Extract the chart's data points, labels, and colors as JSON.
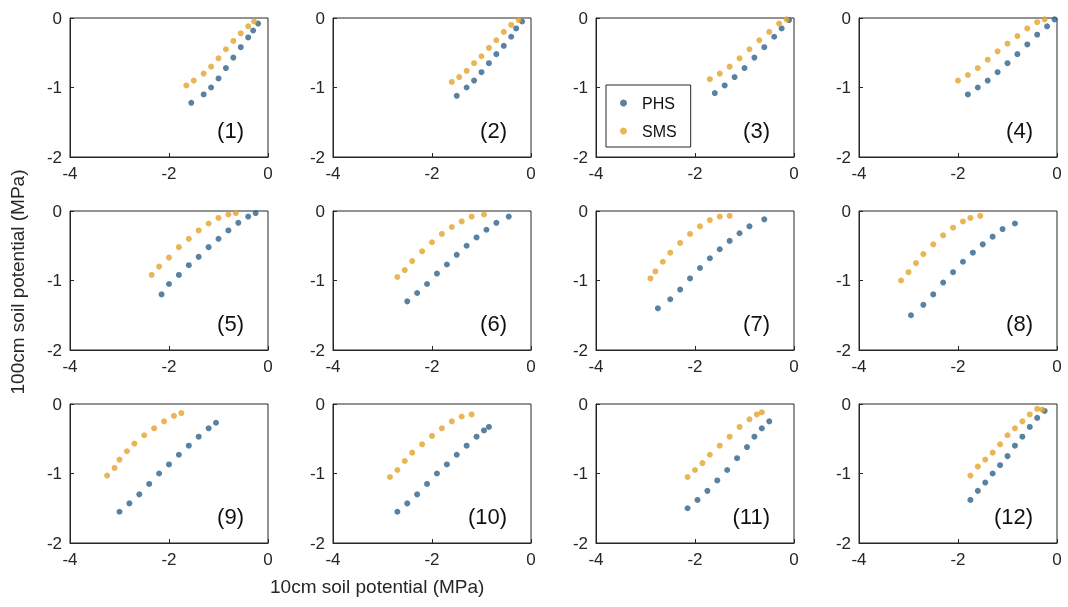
{
  "chart_data": [
    {
      "type": "scatter",
      "annotations": [
        "(1)"
      ],
      "xlim": [
        -4,
        0
      ],
      "xticks": [
        -4,
        -2,
        0
      ],
      "ylim": [
        -2,
        0
      ],
      "yticks": [
        -2,
        -1,
        0
      ],
      "grid": false,
      "legend": false,
      "marker": "circle",
      "series": [
        {
          "color": "#2f6189",
          "x": [
            -1.55,
            -1.3,
            -1.15,
            -1.0,
            -0.85,
            -0.7,
            -0.55,
            -0.4,
            -0.3,
            -0.2
          ],
          "values": [
            -1.22,
            -1.1,
            -1.0,
            -0.87,
            -0.72,
            -0.57,
            -0.42,
            -0.28,
            -0.18,
            -0.08
          ]
        },
        {
          "color": "#e3a32b",
          "x": [
            -1.65,
            -1.5,
            -1.3,
            -1.15,
            -1.0,
            -0.85,
            -0.7,
            -0.55,
            -0.4,
            -0.28
          ],
          "values": [
            -0.97,
            -0.9,
            -0.8,
            -0.7,
            -0.58,
            -0.45,
            -0.33,
            -0.22,
            -0.12,
            -0.05
          ]
        }
      ]
    },
    {
      "type": "scatter",
      "annotations": [
        "(2)"
      ],
      "xlim": [
        -4,
        0
      ],
      "xticks": [
        -4,
        -2,
        0
      ],
      "ylim": [
        -2,
        0
      ],
      "yticks": [
        -2,
        -1,
        0
      ],
      "grid": false,
      "legend": false,
      "marker": "circle",
      "series": [
        {
          "color": "#2f6189",
          "x": [
            -1.5,
            -1.3,
            -1.15,
            -1.0,
            -0.85,
            -0.7,
            -0.55,
            -0.4,
            -0.3,
            -0.18
          ],
          "values": [
            -1.12,
            -1.0,
            -0.9,
            -0.78,
            -0.65,
            -0.52,
            -0.4,
            -0.27,
            -0.15,
            -0.05
          ]
        },
        {
          "color": "#e3a32b",
          "x": [
            -1.6,
            -1.45,
            -1.3,
            -1.15,
            -1.0,
            -0.85,
            -0.7,
            -0.55,
            -0.4,
            -0.25
          ],
          "values": [
            -0.92,
            -0.85,
            -0.76,
            -0.65,
            -0.55,
            -0.43,
            -0.32,
            -0.2,
            -0.1,
            -0.03
          ]
        }
      ]
    },
    {
      "type": "scatter",
      "annotations": [
        "(3)"
      ],
      "xlim": [
        -4,
        0
      ],
      "xticks": [
        -4,
        -2,
        0
      ],
      "ylim": [
        -2,
        0
      ],
      "yticks": [
        -2,
        -1,
        0
      ],
      "grid": false,
      "legend": "bottom left",
      "marker": "circle",
      "series": [
        {
          "name": "PHS",
          "color": "#2f6189",
          "x": [
            -1.6,
            -1.4,
            -1.2,
            -1.0,
            -0.8,
            -0.6,
            -0.4,
            -0.25,
            -0.1
          ],
          "values": [
            -1.08,
            -0.97,
            -0.85,
            -0.72,
            -0.57,
            -0.42,
            -0.27,
            -0.15,
            -0.03
          ]
        },
        {
          "name": "SMS",
          "color": "#e3a32b",
          "x": [
            -1.7,
            -1.5,
            -1.3,
            -1.1,
            -0.9,
            -0.7,
            -0.5,
            -0.3,
            -0.15
          ],
          "values": [
            -0.88,
            -0.8,
            -0.7,
            -0.58,
            -0.45,
            -0.32,
            -0.2,
            -0.08,
            -0.02
          ]
        }
      ]
    },
    {
      "type": "scatter",
      "annotations": [
        "(4)"
      ],
      "xlim": [
        -4,
        0
      ],
      "xticks": [
        -4,
        -2,
        0
      ],
      "ylim": [
        -2,
        0
      ],
      "yticks": [
        -2,
        -1,
        0
      ],
      "grid": false,
      "legend": false,
      "marker": "circle",
      "series": [
        {
          "color": "#2f6189",
          "x": [
            -1.8,
            -1.6,
            -1.4,
            -1.2,
            -1.0,
            -0.8,
            -0.6,
            -0.4,
            -0.2,
            -0.05
          ],
          "values": [
            -1.1,
            -1.0,
            -0.9,
            -0.78,
            -0.65,
            -0.52,
            -0.38,
            -0.24,
            -0.12,
            -0.02
          ]
        },
        {
          "color": "#e3a32b",
          "x": [
            -2.0,
            -1.8,
            -1.6,
            -1.4,
            -1.2,
            -1.0,
            -0.8,
            -0.6,
            -0.4,
            -0.25
          ],
          "values": [
            -0.9,
            -0.82,
            -0.72,
            -0.6,
            -0.48,
            -0.37,
            -0.26,
            -0.15,
            -0.06,
            -0.02
          ]
        }
      ]
    },
    {
      "type": "scatter",
      "annotations": [
        "(5)"
      ],
      "ylabel": "100cm soil potential (MPa)",
      "xlim": [
        -4,
        0
      ],
      "xticks": [
        -4,
        -2,
        0
      ],
      "ylim": [
        -2,
        0
      ],
      "yticks": [
        -2,
        -1,
        0
      ],
      "grid": false,
      "legend": false,
      "marker": "circle",
      "series": [
        {
          "color": "#2f6189",
          "x": [
            -2.15,
            -2.0,
            -1.8,
            -1.6,
            -1.4,
            -1.2,
            -1.0,
            -0.8,
            -0.6,
            -0.4,
            -0.25
          ],
          "values": [
            -1.2,
            -1.05,
            -0.92,
            -0.78,
            -0.66,
            -0.52,
            -0.4,
            -0.28,
            -0.17,
            -0.08,
            -0.03
          ]
        },
        {
          "color": "#e3a32b",
          "x": [
            -2.35,
            -2.2,
            -2.0,
            -1.8,
            -1.6,
            -1.4,
            -1.2,
            -1.0,
            -0.8,
            -0.65
          ],
          "values": [
            -0.92,
            -0.8,
            -0.67,
            -0.52,
            -0.4,
            -0.28,
            -0.18,
            -0.1,
            -0.05,
            -0.03
          ]
        }
      ]
    },
    {
      "type": "scatter",
      "annotations": [
        "(6)"
      ],
      "xlim": [
        -4,
        0
      ],
      "xticks": [
        -4,
        -2,
        0
      ],
      "ylim": [
        -2,
        0
      ],
      "yticks": [
        -2,
        -1,
        0
      ],
      "grid": false,
      "legend": false,
      "marker": "circle",
      "series": [
        {
          "color": "#2f6189",
          "x": [
            -2.5,
            -2.3,
            -2.1,
            -1.9,
            -1.7,
            -1.5,
            -1.3,
            -1.1,
            -0.9,
            -0.7,
            -0.45
          ],
          "values": [
            -1.3,
            -1.18,
            -1.05,
            -0.9,
            -0.77,
            -0.63,
            -0.5,
            -0.38,
            -0.27,
            -0.17,
            -0.08
          ]
        },
        {
          "color": "#e3a32b",
          "x": [
            -2.7,
            -2.55,
            -2.4,
            -2.2,
            -2.0,
            -1.8,
            -1.6,
            -1.4,
            -1.2,
            -0.95
          ],
          "values": [
            -0.95,
            -0.85,
            -0.72,
            -0.58,
            -0.45,
            -0.33,
            -0.23,
            -0.15,
            -0.08,
            -0.05
          ]
        }
      ]
    },
    {
      "type": "scatter",
      "annotations": [
        "(7)"
      ],
      "xlim": [
        -4,
        0
      ],
      "xticks": [
        -4,
        -2,
        0
      ],
      "ylim": [
        -2,
        0
      ],
      "yticks": [
        -2,
        -1,
        0
      ],
      "grid": false,
      "legend": false,
      "marker": "circle",
      "series": [
        {
          "color": "#2f6189",
          "x": [
            -2.75,
            -2.5,
            -2.3,
            -2.1,
            -1.9,
            -1.7,
            -1.5,
            -1.3,
            -1.1,
            -0.9,
            -0.6
          ],
          "values": [
            -1.4,
            -1.27,
            -1.13,
            -0.97,
            -0.82,
            -0.68,
            -0.55,
            -0.43,
            -0.32,
            -0.22,
            -0.12
          ]
        },
        {
          "color": "#e3a32b",
          "x": [
            -2.9,
            -2.8,
            -2.65,
            -2.5,
            -2.3,
            -2.1,
            -1.9,
            -1.7,
            -1.5,
            -1.3
          ],
          "values": [
            -0.97,
            -0.87,
            -0.73,
            -0.6,
            -0.46,
            -0.33,
            -0.22,
            -0.13,
            -0.08,
            -0.07
          ]
        }
      ]
    },
    {
      "type": "scatter",
      "annotations": [
        "(8)"
      ],
      "xlim": [
        -4,
        0
      ],
      "xticks": [
        -4,
        -2,
        0
      ],
      "ylim": [
        -2,
        0
      ],
      "yticks": [
        -2,
        -1,
        0
      ],
      "grid": false,
      "legend": false,
      "marker": "circle",
      "series": [
        {
          "color": "#2f6189",
          "x": [
            -2.95,
            -2.7,
            -2.5,
            -2.3,
            -2.1,
            -1.9,
            -1.7,
            -1.5,
            -1.3,
            -1.1,
            -0.85
          ],
          "values": [
            -1.5,
            -1.35,
            -1.2,
            -1.03,
            -0.88,
            -0.73,
            -0.6,
            -0.48,
            -0.37,
            -0.26,
            -0.18
          ]
        },
        {
          "color": "#e3a32b",
          "x": [
            -3.15,
            -3.0,
            -2.85,
            -2.7,
            -2.5,
            -2.3,
            -2.1,
            -1.9,
            -1.75,
            -1.55
          ],
          "values": [
            -1.0,
            -0.88,
            -0.75,
            -0.62,
            -0.48,
            -0.35,
            -0.24,
            -0.15,
            -0.1,
            -0.07
          ]
        }
      ]
    },
    {
      "type": "scatter",
      "annotations": [
        "(9)"
      ],
      "xlabel": "10cm soil potential (MPa)",
      "xlim": [
        -4,
        0
      ],
      "xticks": [
        -4,
        -2,
        0
      ],
      "ylim": [
        -2,
        0
      ],
      "yticks": [
        -2,
        -1,
        0
      ],
      "grid": false,
      "legend": false,
      "marker": "circle",
      "series": [
        {
          "color": "#2f6189",
          "x": [
            -3.0,
            -2.8,
            -2.6,
            -2.4,
            -2.2,
            -2.0,
            -1.8,
            -1.6,
            -1.4,
            -1.2,
            -1.05
          ],
          "values": [
            -1.55,
            -1.43,
            -1.3,
            -1.15,
            -1.0,
            -0.87,
            -0.73,
            -0.6,
            -0.47,
            -0.35,
            -0.27
          ]
        },
        {
          "color": "#e3a32b",
          "x": [
            -3.25,
            -3.1,
            -3.0,
            -2.85,
            -2.7,
            -2.5,
            -2.3,
            -2.1,
            -1.9,
            -1.75
          ],
          "values": [
            -1.03,
            -0.92,
            -0.8,
            -0.68,
            -0.57,
            -0.45,
            -0.35,
            -0.25,
            -0.17,
            -0.13
          ]
        }
      ]
    },
    {
      "type": "scatter",
      "annotations": [
        "(10)"
      ],
      "xlim": [
        -4,
        0
      ],
      "xticks": [
        -4,
        -2,
        0
      ],
      "ylim": [
        -2,
        0
      ],
      "yticks": [
        -2,
        -1,
        0
      ],
      "grid": false,
      "legend": false,
      "marker": "circle",
      "series": [
        {
          "color": "#2f6189",
          "x": [
            -2.7,
            -2.5,
            -2.3,
            -2.1,
            -1.9,
            -1.7,
            -1.5,
            -1.3,
            -1.1,
            -0.95,
            -0.85
          ],
          "values": [
            -1.55,
            -1.43,
            -1.3,
            -1.15,
            -1.0,
            -0.87,
            -0.73,
            -0.6,
            -0.47,
            -0.38,
            -0.33
          ]
        },
        {
          "color": "#e3a32b",
          "x": [
            -2.85,
            -2.7,
            -2.55,
            -2.4,
            -2.2,
            -2.0,
            -1.8,
            -1.6,
            -1.4,
            -1.2
          ],
          "values": [
            -1.05,
            -0.95,
            -0.82,
            -0.7,
            -0.58,
            -0.46,
            -0.35,
            -0.25,
            -0.18,
            -0.15
          ]
        }
      ]
    },
    {
      "type": "scatter",
      "annotations": [
        "(11)"
      ],
      "xlim": [
        -4,
        0
      ],
      "xticks": [
        -4,
        -2,
        0
      ],
      "ylim": [
        -2,
        0
      ],
      "yticks": [
        -2,
        -1,
        0
      ],
      "grid": false,
      "legend": false,
      "marker": "circle",
      "series": [
        {
          "color": "#2f6189",
          "x": [
            -2.15,
            -1.95,
            -1.75,
            -1.55,
            -1.35,
            -1.15,
            -0.95,
            -0.8,
            -0.65,
            -0.5
          ],
          "values": [
            -1.5,
            -1.38,
            -1.25,
            -1.1,
            -0.95,
            -0.78,
            -0.62,
            -0.47,
            -0.35,
            -0.25
          ]
        },
        {
          "color": "#e3a32b",
          "x": [
            -2.15,
            -2.0,
            -1.85,
            -1.7,
            -1.5,
            -1.3,
            -1.1,
            -0.9,
            -0.75,
            -0.65
          ],
          "values": [
            -1.05,
            -0.95,
            -0.85,
            -0.73,
            -0.6,
            -0.47,
            -0.33,
            -0.22,
            -0.15,
            -0.12
          ]
        }
      ]
    },
    {
      "type": "scatter",
      "annotations": [
        "(12)"
      ],
      "xlim": [
        -4,
        0
      ],
      "xticks": [
        -4,
        -2,
        0
      ],
      "ylim": [
        -2,
        0
      ],
      "yticks": [
        -2,
        -1,
        0
      ],
      "grid": false,
      "legend": false,
      "marker": "circle",
      "series": [
        {
          "color": "#2f6189",
          "x": [
            -1.75,
            -1.6,
            -1.45,
            -1.3,
            -1.15,
            -1.0,
            -0.85,
            -0.7,
            -0.55,
            -0.4,
            -0.25
          ],
          "values": [
            -1.38,
            -1.25,
            -1.13,
            -1.0,
            -0.88,
            -0.75,
            -0.6,
            -0.47,
            -0.33,
            -0.2,
            -0.1
          ]
        },
        {
          "color": "#e3a32b",
          "x": [
            -1.75,
            -1.6,
            -1.45,
            -1.3,
            -1.15,
            -1.0,
            -0.85,
            -0.7,
            -0.55,
            -0.4,
            -0.3
          ],
          "values": [
            -1.03,
            -0.9,
            -0.8,
            -0.7,
            -0.58,
            -0.45,
            -0.35,
            -0.25,
            -0.15,
            -0.07,
            -0.08
          ]
        }
      ]
    }
  ]
}
